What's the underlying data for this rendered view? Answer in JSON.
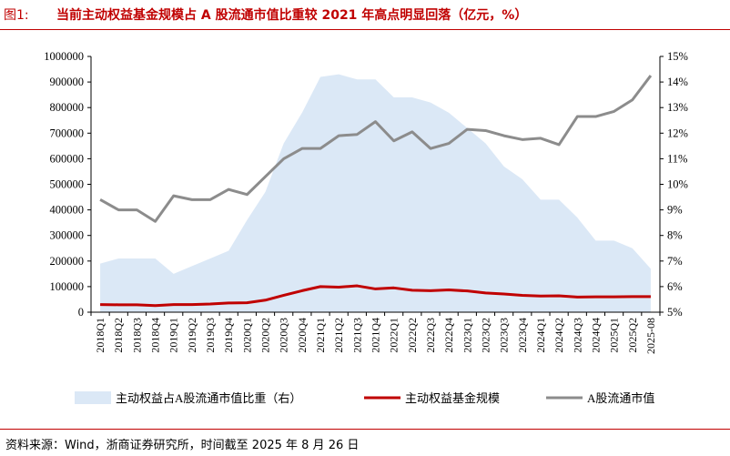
{
  "figure": {
    "label": "图1:",
    "title": "当前主动权益基金规模占 A 股流通市值比重较 2021 年高点明显回落（亿元，%）"
  },
  "source": "资料来源：Wind，浙商证券研究所，时间截至 2025 年 8 月 26 日",
  "colors": {
    "ratio_area": "#dbe8f6",
    "fund_scale": "#c00000",
    "market_cap": "#8c8c8c",
    "frame": "#c00000"
  },
  "chart_data": {
    "type": "line",
    "categories": [
      "2018Q1",
      "2018Q2",
      "2018Q3",
      "2018Q4",
      "2019Q1",
      "2019Q2",
      "2019Q3",
      "2019Q4",
      "2020Q1",
      "2020Q2",
      "2020Q3",
      "2020Q4",
      "2021Q1",
      "2021Q2",
      "2021Q3",
      "2021Q4",
      "2022Q1",
      "2022Q2",
      "2022Q3",
      "2022Q4",
      "2023Q1",
      "2023Q2",
      "2023Q3",
      "2023Q4",
      "2024Q1",
      "2024Q2",
      "2024Q3",
      "2024Q4",
      "2025Q1",
      "2025Q2",
      "2025-08"
    ],
    "y_left": {
      "min": 0,
      "max": 1000000,
      "ticks": [
        0,
        100000,
        200000,
        300000,
        400000,
        500000,
        600000,
        700000,
        800000,
        900000,
        1000000
      ]
    },
    "y_right": {
      "min": 5,
      "max": 15,
      "ticks": [
        "5%",
        "6%",
        "7%",
        "8%",
        "9%",
        "10%",
        "11%",
        "12%",
        "13%",
        "14%",
        "15%"
      ]
    },
    "series": [
      {
        "name": "主动权益占A股流通市值比重（右）",
        "kind": "area",
        "axis": "right",
        "values": [
          6.9,
          7.1,
          7.1,
          7.1,
          6.5,
          6.8,
          7.1,
          7.4,
          8.6,
          9.7,
          11.6,
          12.8,
          14.2,
          14.3,
          14.1,
          14.1,
          13.4,
          13.4,
          13.2,
          12.8,
          12.2,
          11.6,
          10.7,
          10.2,
          9.4,
          9.4,
          8.7,
          7.8,
          7.8,
          7.5,
          6.7
        ]
      },
      {
        "name": "主动权益基金规模",
        "kind": "line",
        "axis": "left",
        "values": [
          30000,
          29000,
          29000,
          26000,
          30000,
          30000,
          32000,
          36000,
          37000,
          47000,
          66000,
          84000,
          100000,
          98000,
          103000,
          91000,
          95000,
          86000,
          84000,
          87000,
          83000,
          75000,
          71000,
          66000,
          63000,
          64000,
          59000,
          60000,
          60000,
          61000,
          61000
        ]
      },
      {
        "name": "A股流通市值",
        "kind": "line",
        "axis": "left",
        "values": [
          440000,
          400000,
          400000,
          355000,
          455000,
          440000,
          440000,
          480000,
          460000,
          530000,
          600000,
          640000,
          640000,
          690000,
          695000,
          745000,
          670000,
          705000,
          640000,
          660000,
          715000,
          710000,
          690000,
          675000,
          680000,
          655000,
          765000,
          765000,
          785000,
          830000,
          925000
        ]
      }
    ]
  }
}
